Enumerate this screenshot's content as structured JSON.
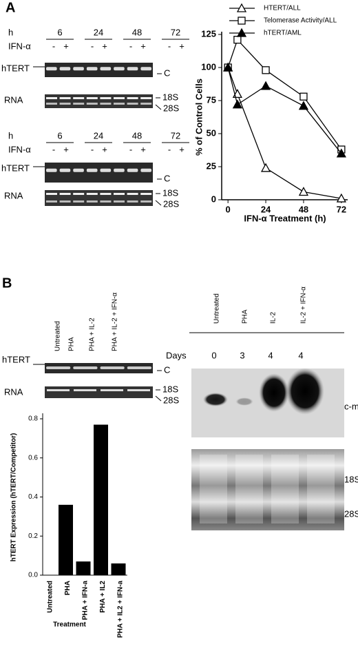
{
  "panel_a": {
    "label": "A",
    "gels": [
      {
        "time_label": "h",
        "times": [
          "6",
          "24",
          "48",
          "72"
        ],
        "treatment_label": "IFN-α",
        "signs": [
          "-",
          "+",
          "-",
          "+",
          "-",
          "+",
          "-",
          "+"
        ],
        "target_label": "hTERT",
        "competitor_label": "C",
        "rna_label": "RNA",
        "rna_markers": [
          "18S",
          "28S"
        ]
      },
      {
        "time_label": "h",
        "times": [
          "6",
          "24",
          "48",
          "72"
        ],
        "treatment_label": "IFN-α",
        "signs": [
          "-",
          "+",
          "-",
          "+",
          "-",
          "+",
          "-",
          "+"
        ],
        "target_label": "hTERT",
        "competitor_label": "C",
        "rna_label": "RNA",
        "rna_markers": [
          "18S",
          "28S"
        ]
      }
    ]
  },
  "panel_b": {
    "label": "B",
    "gel": {
      "lanes": [
        "Untreated",
        "PHA",
        "PHA + IL-2",
        "PHA + IL-2 + IFN-α"
      ],
      "target_label": "hTERT",
      "competitor_label": "C",
      "rna_label": "RNA",
      "rna_markers": [
        "18S",
        "28S"
      ]
    },
    "northern": {
      "lanes": [
        "Untreated",
        "PHA",
        "IL-2",
        "IL-2 + IFN-α"
      ],
      "days_label": "Days",
      "days": [
        "0",
        "3",
        "4",
        "4"
      ],
      "probe_label": "c-myc",
      "rna_markers": [
        "18S",
        "28S"
      ]
    }
  },
  "chart_data": [
    {
      "type": "line",
      "xlabel": "IFN-α Treatment (h)",
      "ylabel": "% of Control Cells",
      "xlim": [
        -4,
        76
      ],
      "xticks": [
        0,
        24,
        48,
        72
      ],
      "ylim": [
        0,
        125
      ],
      "yticks": [
        0,
        25,
        50,
        75,
        100,
        125
      ],
      "series": [
        {
          "name": "HTERT/ALL",
          "color": "#000000",
          "marker": "triangle-open",
          "x": [
            0,
            6,
            24,
            48,
            72
          ],
          "values": [
            100,
            80,
            24,
            6,
            1
          ]
        },
        {
          "name": "Telomerase Activity/ALL",
          "color": "#000000",
          "marker": "square-open",
          "x": [
            0,
            6,
            24,
            48,
            72
          ],
          "values": [
            100,
            121,
            98,
            78,
            38
          ]
        },
        {
          "name": "hTERT/AML",
          "color": "#000000",
          "marker": "triangle-filled",
          "x": [
            0,
            6,
            24,
            48,
            72
          ],
          "values": [
            100,
            72,
            86,
            71,
            35
          ]
        }
      ]
    },
    {
      "type": "bar",
      "xlabel": "Treatment",
      "ylabel": "hTERT Expression (hTERT/Competitor)",
      "categories": [
        "Untreated",
        "PHA",
        "PHA + IFN-a",
        "PHA + IL2",
        "PHA + IL2 + IFN-a"
      ],
      "values": [
        0,
        0.36,
        0.07,
        0.77,
        0.06
      ],
      "color": "#000000",
      "ylim": [
        0,
        0.8
      ],
      "yticks": [
        {
          "value": 0,
          "label": "0.0"
        },
        0.2,
        0.4,
        0.6,
        0.8
      ]
    }
  ]
}
